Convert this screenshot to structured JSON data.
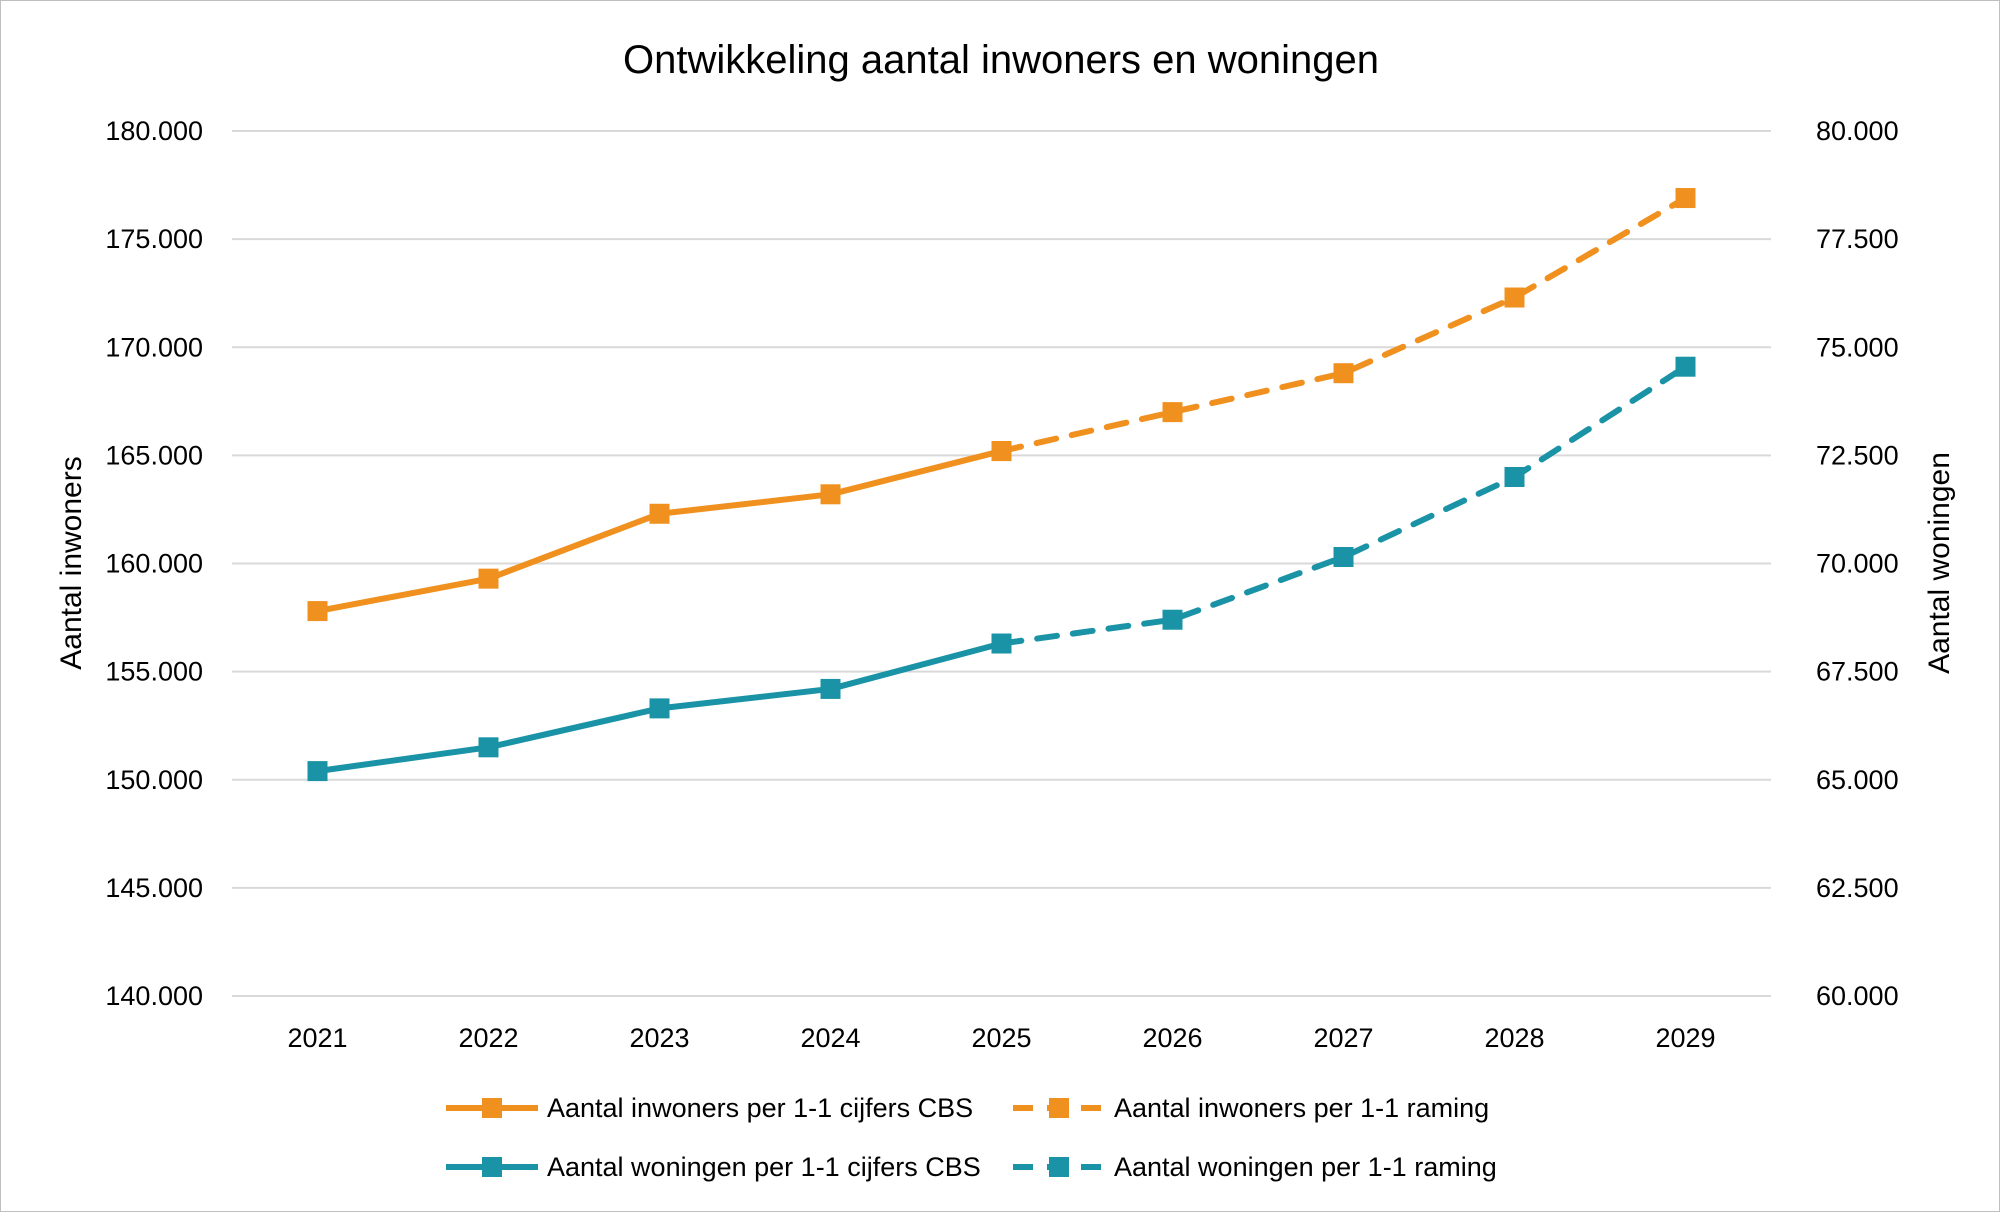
{
  "chart_data": {
    "type": "line",
    "title": "Ontwikkeling aantal inwoners en woningen",
    "categories": [
      "2021",
      "2022",
      "2023",
      "2024",
      "2025",
      "2026",
      "2027",
      "2028",
      "2029"
    ],
    "y_left": {
      "label": "Aantal inwoners",
      "range": [
        140000,
        180000
      ],
      "ticks": [
        140000,
        145000,
        150000,
        155000,
        160000,
        165000,
        170000,
        175000,
        180000
      ],
      "tick_labels": [
        "140.000",
        "145.000",
        "150.000",
        "155.000",
        "160.000",
        "165.000",
        "170.000",
        "175.000",
        "180.000"
      ]
    },
    "y_right": {
      "label": "Aantal woningen",
      "range": [
        60000,
        80000
      ],
      "ticks": [
        60000,
        62500,
        65000,
        67500,
        70000,
        72500,
        75000,
        77500,
        80000
      ],
      "tick_labels": [
        "60.000",
        "62.500",
        "65.000",
        "67.500",
        "70.000",
        "72.500",
        "75.000",
        "77.500",
        "80.000"
      ]
    },
    "series": [
      {
        "name": "Aantal inwoners per 1-1 cijfers CBS",
        "axis": "left",
        "color": "#F0901E",
        "style": "solid",
        "x": [
          "2021",
          "2022",
          "2023",
          "2024",
          "2025"
        ],
        "values": [
          157800,
          159300,
          162300,
          163200,
          165200
        ]
      },
      {
        "name": "Aantal inwoners per 1-1 raming",
        "axis": "left",
        "color": "#F0901E",
        "style": "dashed",
        "x": [
          "2025",
          "2026",
          "2027",
          "2028",
          "2029"
        ],
        "values": [
          165200,
          167000,
          168800,
          172300,
          176900
        ]
      },
      {
        "name": "Aantal woningen per 1-1 cijfers CBS",
        "axis": "right",
        "color": "#1A93A6",
        "style": "solid",
        "x": [
          "2021",
          "2022",
          "2023",
          "2024",
          "2025"
        ],
        "values": [
          65200,
          65750,
          66650,
          67100,
          68150
        ]
      },
      {
        "name": "Aantal woningen per 1-1 raming",
        "axis": "right",
        "color": "#1A93A6",
        "style": "dashed",
        "x": [
          "2025",
          "2026",
          "2027",
          "2028",
          "2029"
        ],
        "values": [
          68150,
          68700,
          70150,
          72000,
          74550
        ]
      }
    ],
    "legend_position": "bottom",
    "grid": "horizontal"
  }
}
